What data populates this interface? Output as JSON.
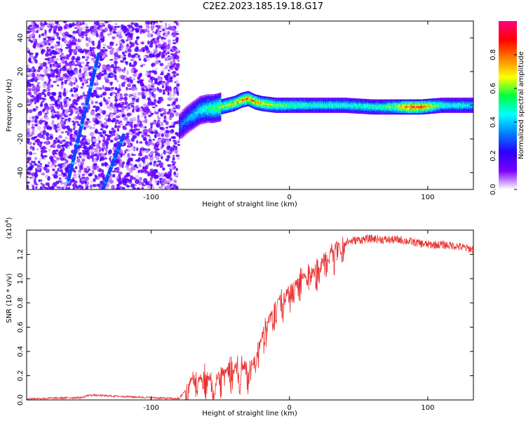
{
  "title": "C2E2.2023.185.19.18.G17",
  "chart_data": [
    {
      "type": "heatmap",
      "xlabel": "Height of straight line (km)",
      "ylabel": "Frequency (Hz)",
      "xlim": [
        -190,
        133
      ],
      "ylim": [
        -50,
        50
      ],
      "xticks": [
        -100,
        0,
        100
      ],
      "xtick_labels": [
        "-100",
        "0",
        "100"
      ],
      "yticks": [
        -40,
        -20,
        0,
        20,
        40
      ],
      "ytick_labels": [
        "-40",
        "-20",
        "0",
        "20",
        "40"
      ],
      "colorbar": {
        "label": "Normalized spectral amplitude",
        "range": [
          0.0,
          1.0
        ],
        "ticks": [
          0.0,
          0.2,
          0.4,
          0.6,
          0.8
        ],
        "tick_labels": [
          "0.0",
          "0.2",
          "0.4",
          "0.6",
          "0.8"
        ],
        "colormap": [
          "#ffffff",
          "#7a00ff",
          "#2a00ff",
          "#0080ff",
          "#00ffff",
          "#00ff40",
          "#ffff00",
          "#ff8000",
          "#ff0000",
          "#ff0080"
        ]
      },
      "noise_region": {
        "x_from": -190,
        "x_to": -80,
        "amplitude": 0.2
      },
      "diagonal_streaks": [
        {
          "x": [
            -160,
            -138
          ],
          "y": [
            -45,
            30
          ]
        },
        {
          "x": [
            -135,
            -120
          ],
          "y": [
            -50,
            -18
          ]
        }
      ],
      "ridge": {
        "x": [
          -80,
          -75,
          -70,
          -65,
          -60,
          -55,
          -50,
          -45,
          -40,
          -35,
          -30,
          -25,
          -20,
          -10,
          0,
          20,
          40,
          60,
          75,
          85,
          95,
          110,
          133
        ],
        "y": [
          -13,
          -9,
          -6,
          -3,
          -2,
          -2,
          -1,
          0,
          1,
          3,
          4,
          2,
          1,
          0,
          0,
          0,
          0,
          -1,
          -1,
          -1,
          -1,
          0,
          0
        ],
        "amplitude": [
          0.3,
          0.35,
          0.4,
          0.45,
          0.5,
          0.55,
          0.6,
          0.65,
          0.7,
          0.75,
          0.8,
          0.75,
          0.7,
          0.6,
          0.55,
          0.5,
          0.5,
          0.5,
          0.6,
          0.85,
          0.85,
          0.5,
          0.45
        ]
      }
    },
    {
      "type": "line",
      "xlabel": "Height of straight line (km)",
      "ylabel": "SNR (10 * v/v)",
      "y_multiplier_label": "(x10",
      "y_multiplier_exponent": "4",
      "y_multiplier_close": ")",
      "xlim": [
        -190,
        133
      ],
      "ylim": [
        0.0,
        1.4
      ],
      "xticks": [
        -100,
        0,
        100
      ],
      "xtick_labels": [
        "-100",
        "0",
        "100"
      ],
      "yticks": [
        0.0,
        0.2,
        0.4,
        0.6,
        0.8,
        1.0,
        1.2
      ],
      "ytick_labels": [
        "0.0",
        "0.2",
        "0.4",
        "0.6",
        "0.8",
        "1.0",
        "1.2"
      ],
      "series": [
        {
          "color": "#e83030",
          "x": [
            -190,
            -150,
            -145,
            -80,
            -75,
            -72,
            -68,
            -60,
            -55,
            -50,
            -45,
            -40,
            -35,
            -30,
            -25,
            -20,
            -15,
            -10,
            -5,
            0,
            5,
            10,
            15,
            20,
            25,
            30,
            35,
            40,
            50,
            60,
            70,
            80,
            90,
            100,
            110,
            120,
            133
          ],
          "y": [
            0.01,
            0.02,
            0.04,
            0.01,
            0.08,
            0.2,
            0.22,
            0.22,
            0.2,
            0.24,
            0.28,
            0.3,
            0.32,
            0.28,
            0.35,
            0.55,
            0.7,
            0.8,
            0.9,
            0.92,
            1.0,
            1.05,
            1.08,
            1.1,
            1.18,
            1.26,
            1.3,
            1.3,
            1.32,
            1.33,
            1.32,
            1.32,
            1.3,
            1.28,
            1.28,
            1.27,
            1.24
          ]
        }
      ]
    }
  ]
}
